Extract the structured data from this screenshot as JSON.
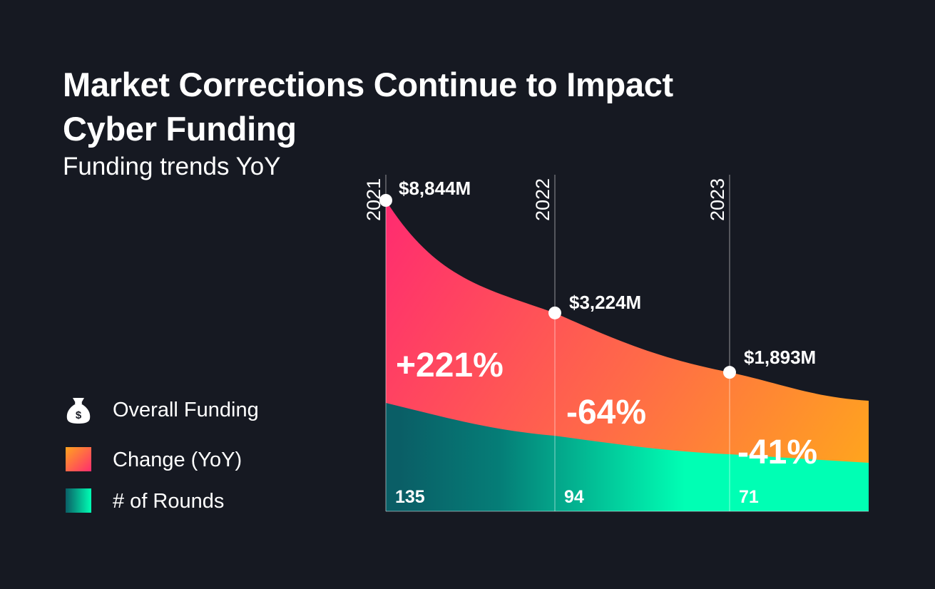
{
  "title": "Market Corrections Continue to Impact Cyber Funding",
  "subtitle": "Funding trends YoY",
  "legend": {
    "overall_funding": "Overall Funding",
    "change": "Change (YoY)",
    "rounds": "# of Rounds"
  },
  "icons": {
    "overall_funding": "money-bag-icon",
    "change": "orange-gradient-swatch",
    "rounds": "teal-gradient-swatch"
  },
  "colors": {
    "background": "#161922",
    "funding_top": "#ff2d6f",
    "funding_bottom": "#ffa31f",
    "rounds_dark": "#0a5e66",
    "rounds_bright": "#00ffb4"
  },
  "chart_data": {
    "type": "area",
    "title": "Funding trends YoY",
    "years": [
      "2021",
      "2022",
      "2023"
    ],
    "series": [
      {
        "name": "Overall Funding",
        "unit": "$M",
        "values": [
          8844,
          3224,
          1893
        ],
        "labels": [
          "$8,844M",
          "$3,224M",
          "$1,893M"
        ]
      },
      {
        "name": "Change (YoY)",
        "values": [
          221,
          -64,
          -41
        ],
        "labels": [
          "+221%",
          "-64%",
          "-41%"
        ]
      },
      {
        "name": "# of Rounds",
        "values": [
          135,
          94,
          71
        ],
        "labels": [
          "135",
          "94",
          "71"
        ]
      }
    ]
  }
}
